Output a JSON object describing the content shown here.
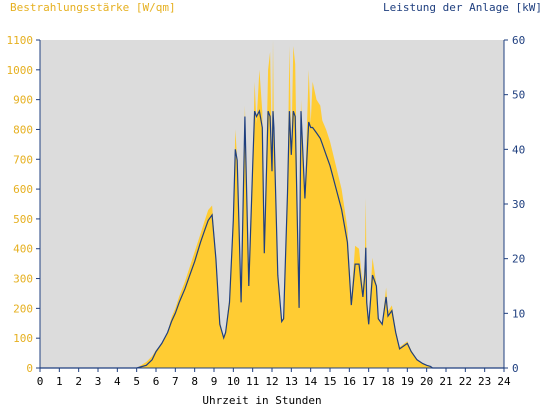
{
  "chart_data": {
    "type": "area",
    "title_left": "Bestrahlungsstärke [W/qm]",
    "title_right": "Leistung der Anlage [kW]",
    "xlabel": "Uhrzeit in Stunden",
    "xlim": [
      0,
      24
    ],
    "ylim_left": [
      0,
      1100
    ],
    "ylim_right": [
      0,
      60
    ],
    "x_ticks": [
      "0",
      "1",
      "2",
      "3",
      "4",
      "5",
      "6",
      "7",
      "8",
      "9",
      "10",
      "11",
      "12",
      "13",
      "14",
      "15",
      "16",
      "17",
      "18",
      "19",
      "20",
      "21",
      "22",
      "23",
      "24"
    ],
    "y_ticks_left": [
      "0",
      "100",
      "200",
      "300",
      "400",
      "500",
      "600",
      "700",
      "800",
      "900",
      "1000",
      "1100"
    ],
    "y_ticks_right": [
      "0",
      "10",
      "20",
      "30",
      "40",
      "50",
      "60"
    ],
    "grid": false,
    "colors": {
      "irradiance": "#ffcc33",
      "power": "#1f3f7f",
      "plot_bg": "#dcdcdc",
      "left_axis_text": "#e6b020",
      "right_axis_text": "#1f3f7f"
    },
    "series": [
      {
        "name": "Bestrahlungsstärke [W/qm]",
        "unit": "W/qm",
        "axis": "left",
        "x": [
          0,
          5.0,
          5.5,
          5.8,
          6.0,
          6.3,
          6.6,
          6.8,
          7.0,
          7.2,
          7.5,
          7.8,
          8.0,
          8.3,
          8.5,
          8.7,
          8.9,
          9.0,
          9.1,
          9.3,
          9.5,
          9.6,
          9.8,
          10.0,
          10.1,
          10.2,
          10.4,
          10.6,
          10.8,
          11.0,
          11.1,
          11.2,
          11.35,
          11.5,
          11.6,
          11.8,
          11.9,
          12.0,
          12.05,
          12.1,
          12.3,
          12.5,
          12.6,
          12.8,
          12.9,
          13.0,
          13.1,
          13.2,
          13.4,
          13.5,
          13.7,
          13.9,
          14.0,
          14.1,
          14.3,
          14.5,
          14.6,
          14.8,
          15.0,
          15.3,
          15.6,
          15.9,
          16.1,
          16.3,
          16.5,
          16.7,
          16.8,
          16.85,
          16.9,
          17.0,
          17.2,
          17.4,
          17.5,
          17.7,
          17.9,
          18.0,
          18.2,
          18.4,
          18.6,
          18.8,
          19.0,
          19.2,
          19.5,
          19.8,
          20.0,
          20.2,
          20.3,
          24
        ],
        "values": [
          0,
          0,
          20,
          40,
          60,
          80,
          120,
          170,
          200,
          240,
          290,
          350,
          390,
          450,
          490,
          530,
          545,
          460,
          380,
          160,
          100,
          130,
          240,
          500,
          800,
          700,
          240,
          880,
          300,
          680,
          960,
          820,
          1000,
          860,
          410,
          1000,
          1060,
          700,
          1100,
          810,
          330,
          160,
          170,
          600,
          1080,
          720,
          1080,
          1020,
          200,
          900,
          590,
          1000,
          820,
          960,
          900,
          880,
          830,
          800,
          760,
          680,
          600,
          470,
          230,
          410,
          400,
          270,
          360,
          570,
          250,
          160,
          370,
          280,
          170,
          150,
          270,
          190,
          210,
          130,
          70,
          80,
          90,
          60,
          30,
          15,
          10,
          5,
          0,
          0
        ]
      },
      {
        "name": "Leistung der Anlage [kW]",
        "unit": "kW",
        "axis": "right",
        "x": [
          0,
          5.0,
          5.5,
          5.8,
          6.0,
          6.3,
          6.6,
          6.8,
          7.0,
          7.2,
          7.5,
          7.8,
          8.0,
          8.3,
          8.5,
          8.7,
          8.9,
          9.0,
          9.1,
          9.3,
          9.5,
          9.6,
          9.8,
          10.0,
          10.1,
          10.2,
          10.4,
          10.6,
          10.8,
          11.0,
          11.1,
          11.2,
          11.35,
          11.5,
          11.6,
          11.8,
          11.9,
          12.0,
          12.05,
          12.1,
          12.3,
          12.5,
          12.6,
          12.8,
          12.9,
          13.0,
          13.1,
          13.2,
          13.4,
          13.5,
          13.7,
          13.9,
          14.0,
          14.1,
          14.3,
          14.5,
          14.6,
          14.8,
          15.0,
          15.3,
          15.6,
          15.9,
          16.1,
          16.3,
          16.5,
          16.7,
          16.8,
          16.85,
          16.9,
          17.0,
          17.2,
          17.4,
          17.5,
          17.7,
          17.9,
          18.0,
          18.2,
          18.4,
          18.6,
          18.8,
          19.0,
          19.2,
          19.5,
          19.8,
          20.0,
          20.2,
          20.3,
          24
        ],
        "values": [
          0,
          0,
          0.5,
          1.5,
          3,
          4.5,
          6.5,
          8.5,
          10,
          12,
          14.5,
          17.5,
          19.5,
          23,
          25,
          27,
          28,
          24,
          20,
          8,
          5.5,
          6.5,
          12,
          27,
          40,
          38,
          12,
          46,
          15,
          37,
          47,
          46,
          47,
          44,
          21,
          47,
          46,
          36,
          47,
          44,
          17,
          8.5,
          9,
          32,
          47,
          39,
          47,
          46,
          11,
          47,
          31,
          45,
          44,
          44,
          43,
          42,
          41,
          39,
          37,
          33,
          29,
          23,
          11.5,
          19,
          19,
          13,
          17,
          22,
          12,
          8,
          17,
          15,
          9,
          8,
          13,
          9.5,
          10.5,
          6.5,
          3.5,
          4,
          4.5,
          3,
          1.5,
          0.8,
          0.5,
          0.3,
          0,
          0
        ]
      }
    ]
  }
}
